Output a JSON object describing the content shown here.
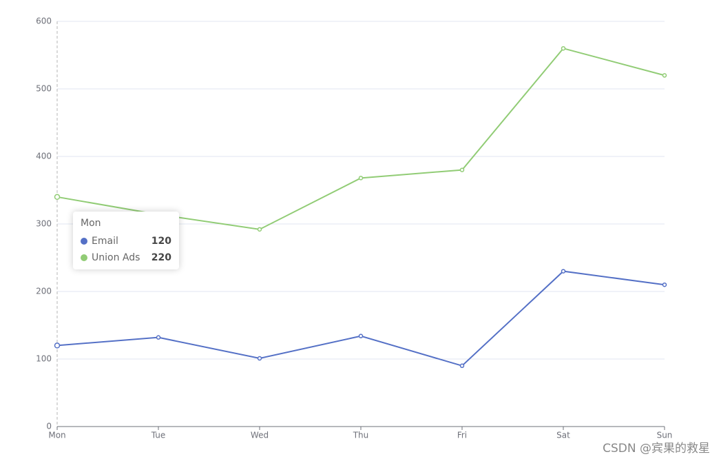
{
  "chart_data": {
    "type": "line",
    "stacked": true,
    "categories": [
      "Mon",
      "Tue",
      "Wed",
      "Thu",
      "Fri",
      "Sat",
      "Sun"
    ],
    "series": [
      {
        "name": "Email",
        "color": "#5470c6",
        "values": [
          120,
          132,
          101,
          134,
          90,
          230,
          210
        ]
      },
      {
        "name": "Union Ads",
        "color": "#91cc75",
        "values": [
          220,
          182,
          191,
          234,
          290,
          330,
          310
        ]
      }
    ],
    "ylim": [
      0,
      600
    ],
    "yticks": [
      0,
      100,
      200,
      300,
      400,
      500,
      600
    ],
    "grid": true,
    "tooltip_index": 0
  },
  "watermark": "CSDN @宾果的救星"
}
